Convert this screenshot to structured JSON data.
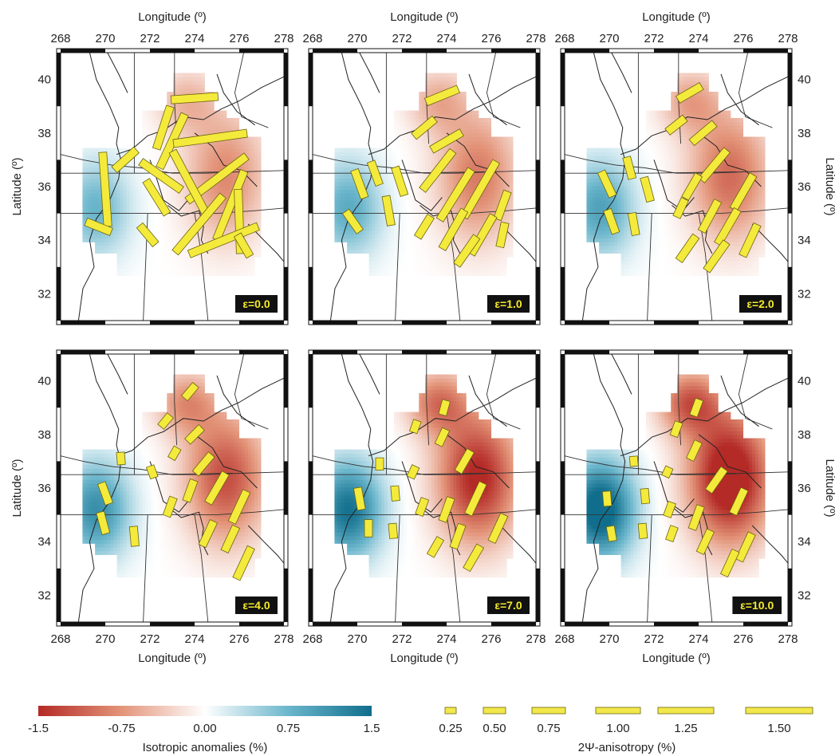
{
  "axes": {
    "longitude_label": "Longitude (º)",
    "latitude_label": "Latitude (º)",
    "lon_ticks": [
      "268",
      "270",
      "272",
      "274",
      "276",
      "278"
    ],
    "lat_ticks": [
      "32",
      "34",
      "36",
      "38",
      "40"
    ],
    "xlim": [
      268,
      278
    ],
    "ylim": [
      31,
      41
    ]
  },
  "panels": [
    {
      "label": "ε=0.0"
    },
    {
      "label": "ε=1.0"
    },
    {
      "label": "ε=2.0"
    },
    {
      "label": "ε=4.0"
    },
    {
      "label": "ε=7.0"
    },
    {
      "label": "ε=10.0"
    }
  ],
  "colorbar": {
    "title": "Isotropic anomalies (%)",
    "ticks": [
      "-1.5",
      "-0.75",
      "0.00",
      "0.75",
      "1.5"
    ],
    "colors": [
      "#b42a26",
      "#e39479",
      "#ffffff",
      "#6bb6cc",
      "#106e8c"
    ]
  },
  "anisotropy_legend": {
    "title": "2Ψ-anisotropy (%)",
    "values": [
      "0.25",
      "0.50",
      "0.75",
      "1.00",
      "1.25",
      "1.50"
    ],
    "bar_color": "#f2e84a"
  },
  "colors": {
    "bar_fill": "#f4ea3c",
    "bar_stroke": "#6b6410",
    "label_bg": "#111111"
  }
}
